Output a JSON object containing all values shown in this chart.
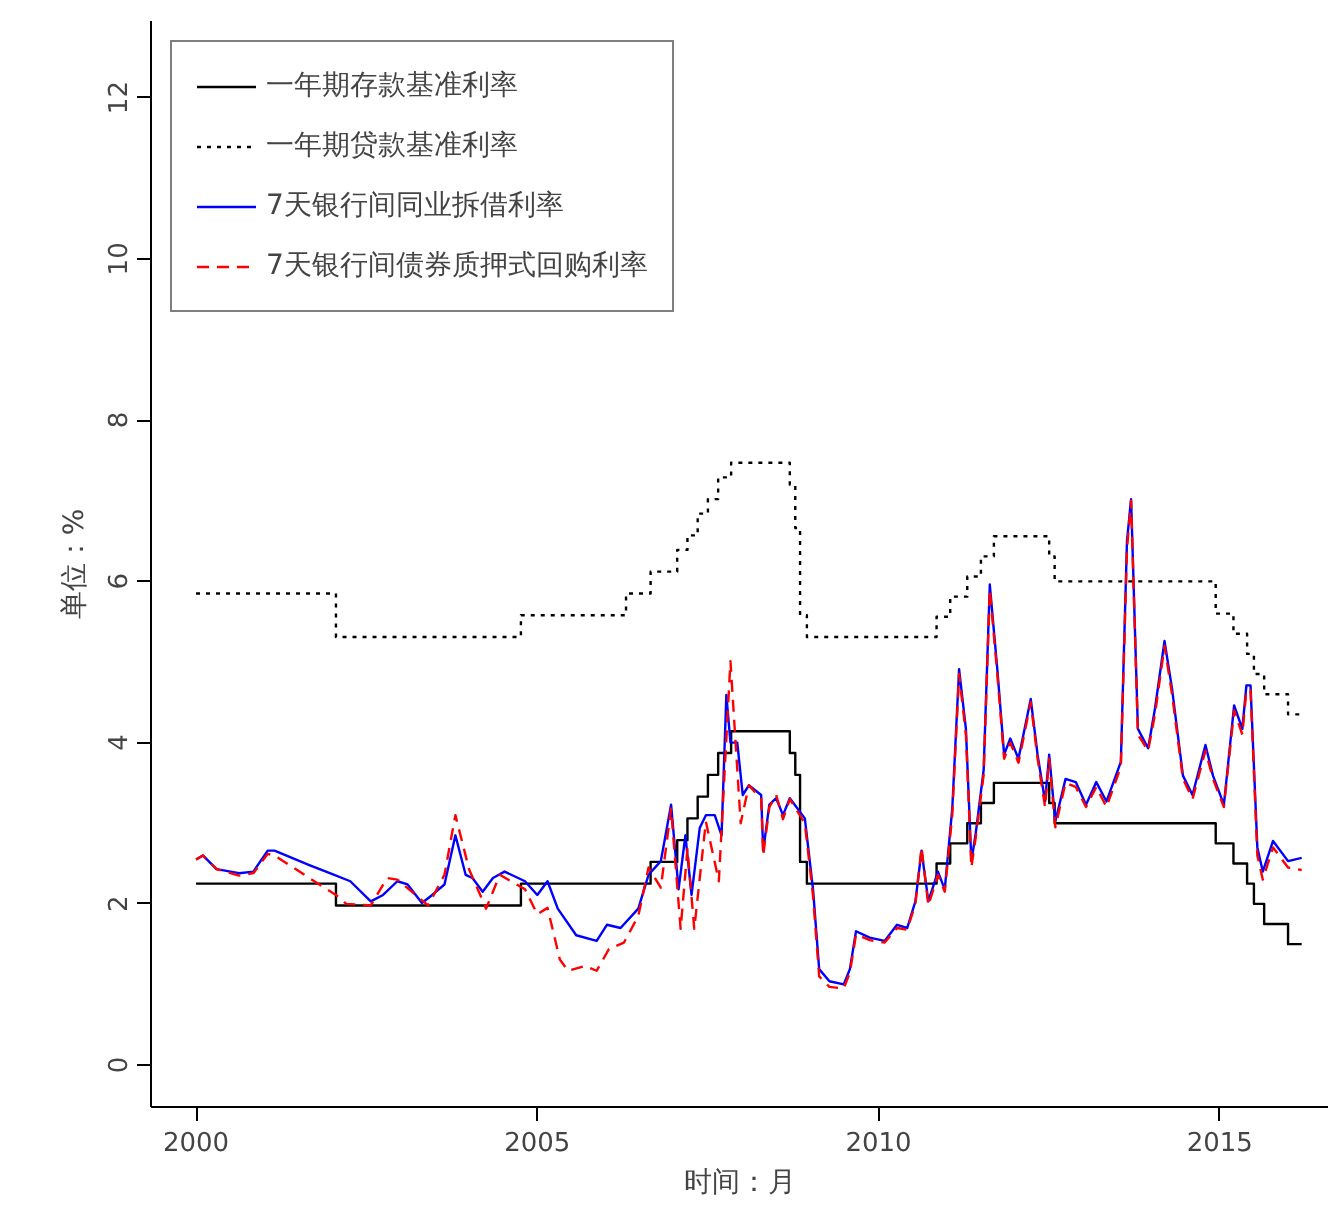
{
  "chart_data": {
    "type": "line",
    "xlabel": "时间：月",
    "ylabel": "单位：%",
    "legend": "top left",
    "xlim": [
      1999.34,
      2016.6
    ],
    "ylim": [
      -0.52,
      12.95
    ],
    "xticks": [
      2000,
      2005,
      2010,
      2015
    ],
    "yticks": [
      0,
      2,
      4,
      6,
      8,
      10,
      12
    ],
    "series": [
      {
        "name": "一年期存款基准利率",
        "type": "step",
        "color": "#000000",
        "line_style": "solid",
        "x": [
          2000,
          2002.05,
          2004.76,
          2006.66,
          2007.05,
          2007.2,
          2007.35,
          2007.5,
          2007.65,
          2007.84,
          2008.7,
          2008.78,
          2008.85,
          2008.95,
          2010.85,
          2011.05,
          2011.3,
          2011.5,
          2011.69,
          2012.5,
          2012.58,
          2014.94,
          2015.2,
          2015.4,
          2015.5,
          2015.65,
          2016.0,
          2016.2
        ],
        "values": [
          2.25,
          1.98,
          2.25,
          2.52,
          2.79,
          3.06,
          3.33,
          3.6,
          3.87,
          4.14,
          3.87,
          3.6,
          2.52,
          2.25,
          2.5,
          2.75,
          3.0,
          3.25,
          3.5,
          3.25,
          3.0,
          2.75,
          2.5,
          2.25,
          2.0,
          1.75,
          1.5,
          1.5
        ]
      },
      {
        "name": "一年期贷款基准利率",
        "type": "step",
        "color": "#000000",
        "line_style": "dotted",
        "x": [
          2000,
          2002.05,
          2004.76,
          2006.3,
          2006.66,
          2007.05,
          2007.2,
          2007.35,
          2007.5,
          2007.65,
          2007.84,
          2008.7,
          2008.78,
          2008.85,
          2008.95,
          2010.85,
          2011.05,
          2011.3,
          2011.5,
          2011.69,
          2012.5,
          2012.58,
          2014.94,
          2015.2,
          2015.4,
          2015.5,
          2015.65,
          2016.0,
          2016.2
        ],
        "values": [
          5.85,
          5.31,
          5.58,
          5.85,
          6.12,
          6.39,
          6.57,
          6.84,
          7.02,
          7.29,
          7.47,
          7.2,
          6.66,
          5.58,
          5.31,
          5.56,
          5.81,
          6.06,
          6.31,
          6.56,
          6.31,
          6.0,
          5.6,
          5.35,
          5.1,
          4.85,
          4.6,
          4.35,
          4.35
        ]
      },
      {
        "name": "7天银行间同业拆借利率",
        "type": "line",
        "color": "#0000ff",
        "line_style": "solid",
        "x": [
          2000.0,
          2000.1,
          2000.3,
          2000.63,
          2000.84,
          2001.05,
          2001.15,
          2001.66,
          2001.96,
          2002.26,
          2002.56,
          2002.74,
          2002.95,
          2003.1,
          2003.31,
          2003.46,
          2003.64,
          2003.8,
          2003.95,
          2004.05,
          2004.2,
          2004.35,
          2004.52,
          2004.72,
          2004.82,
          2005.0,
          2005.15,
          2005.3,
          2005.57,
          2005.87,
          2006.02,
          2006.22,
          2006.48,
          2006.63,
          2006.81,
          2006.96,
          2007.07,
          2007.17,
          2007.26,
          2007.38,
          2007.47,
          2007.6,
          2007.7,
          2007.77,
          2007.83,
          2007.93,
          2008.01,
          2008.1,
          2008.28,
          2008.31,
          2008.4,
          2008.5,
          2008.6,
          2008.7,
          2008.92,
          2009.04,
          2009.13,
          2009.28,
          2009.49,
          2009.58,
          2009.67,
          2009.87,
          2010.09,
          2010.27,
          2010.42,
          2010.54,
          2010.63,
          2010.73,
          2010.87,
          2010.97,
          2011.08,
          2011.18,
          2011.28,
          2011.36,
          2011.42,
          2011.54,
          2011.63,
          2011.74,
          2011.84,
          2011.93,
          2012.05,
          2012.23,
          2012.33,
          2012.44,
          2012.5,
          2012.59,
          2012.74,
          2012.89,
          2013.04,
          2013.19,
          2013.34,
          2013.55,
          2013.64,
          2013.7,
          2013.8,
          2013.95,
          2014.05,
          2014.19,
          2014.3,
          2014.46,
          2014.6,
          2014.79,
          2014.9,
          2015.06,
          2015.21,
          2015.33,
          2015.39,
          2015.45,
          2015.55,
          2015.63,
          2015.78,
          2016.0,
          2016.2
        ],
        "values": [
          2.55,
          2.6,
          2.43,
          2.38,
          2.4,
          2.66,
          2.66,
          2.48,
          2.38,
          2.28,
          2.03,
          2.11,
          2.28,
          2.24,
          2.01,
          2.11,
          2.24,
          2.85,
          2.36,
          2.32,
          2.15,
          2.32,
          2.4,
          2.32,
          2.28,
          2.11,
          2.28,
          1.94,
          1.61,
          1.54,
          1.74,
          1.7,
          1.94,
          2.36,
          2.53,
          3.23,
          2.18,
          2.85,
          2.11,
          2.94,
          3.1,
          3.1,
          2.85,
          4.59,
          4.0,
          4.0,
          3.35,
          3.47,
          3.35,
          2.66,
          3.23,
          3.31,
          3.1,
          3.31,
          3.06,
          2.18,
          1.19,
          1.04,
          1.0,
          1.19,
          1.66,
          1.58,
          1.54,
          1.74,
          1.7,
          2.03,
          2.66,
          2.03,
          2.4,
          2.18,
          3.18,
          4.91,
          4.17,
          2.53,
          2.85,
          3.66,
          5.96,
          4.91,
          3.85,
          4.05,
          3.8,
          4.54,
          3.85,
          3.27,
          3.85,
          3.02,
          3.55,
          3.51,
          3.23,
          3.51,
          3.27,
          3.76,
          6.5,
          7.02,
          4.17,
          3.93,
          4.42,
          5.26,
          4.67,
          3.59,
          3.35,
          3.97,
          3.59,
          3.23,
          4.46,
          4.17,
          4.71,
          4.71,
          2.7,
          2.4,
          2.78,
          2.53,
          2.57
        ]
      },
      {
        "name": "7天银行间债券质押式回购利率",
        "type": "line",
        "color": "#ff0000",
        "line_style": "dashed",
        "x": [
          2000.0,
          2000.1,
          2000.3,
          2000.63,
          2000.84,
          2001.05,
          2001.15,
          2001.66,
          2002.05,
          2002.2,
          2002.56,
          2002.8,
          2002.95,
          2003.4,
          2003.64,
          2003.8,
          2004.0,
          2004.25,
          2004.45,
          2004.82,
          2005.0,
          2005.15,
          2005.33,
          2005.45,
          2005.7,
          2005.87,
          2006.05,
          2006.27,
          2006.48,
          2006.63,
          2006.81,
          2006.96,
          2007.1,
          2007.2,
          2007.3,
          2007.47,
          2007.66,
          2007.83,
          2007.98,
          2008.1,
          2008.28,
          2008.31,
          2008.4,
          2008.5,
          2008.6,
          2008.7,
          2008.92,
          2009.04,
          2009.13,
          2009.28,
          2009.49,
          2009.58,
          2009.67,
          2009.87,
          2010.09,
          2010.27,
          2010.42,
          2010.54,
          2010.63,
          2010.73,
          2010.87,
          2010.97,
          2011.08,
          2011.18,
          2011.28,
          2011.36,
          2011.42,
          2011.54,
          2011.63,
          2011.74,
          2011.84,
          2011.93,
          2012.05,
          2012.23,
          2012.33,
          2012.44,
          2012.5,
          2012.59,
          2012.74,
          2012.89,
          2013.04,
          2013.19,
          2013.34,
          2013.55,
          2013.64,
          2013.7,
          2013.8,
          2013.95,
          2014.05,
          2014.19,
          2014.3,
          2014.46,
          2014.6,
          2014.79,
          2014.9,
          2015.06,
          2015.21,
          2015.33,
          2015.39,
          2015.45,
          2015.55,
          2015.63,
          2015.78,
          2016.0,
          2016.2
        ],
        "values": [
          2.55,
          2.6,
          2.43,
          2.35,
          2.38,
          2.62,
          2.6,
          2.32,
          2.11,
          2.0,
          1.98,
          2.32,
          2.3,
          1.98,
          2.36,
          3.1,
          2.43,
          1.94,
          2.36,
          2.18,
          1.87,
          1.95,
          1.31,
          1.17,
          1.23,
          1.17,
          1.44,
          1.52,
          1.85,
          2.45,
          2.2,
          3.18,
          1.69,
          2.68,
          1.69,
          3.02,
          2.28,
          5.01,
          3.0,
          3.47,
          3.3,
          2.6,
          3.2,
          3.35,
          3.05,
          3.3,
          3.0,
          2.1,
          1.1,
          0.97,
          0.95,
          1.15,
          1.62,
          1.55,
          1.52,
          1.7,
          1.68,
          2.0,
          2.7,
          1.98,
          2.36,
          2.15,
          3.1,
          4.85,
          4.1,
          2.45,
          2.8,
          3.6,
          5.9,
          4.85,
          3.8,
          4.0,
          3.75,
          4.5,
          3.8,
          3.2,
          3.8,
          2.95,
          3.5,
          3.45,
          3.2,
          3.45,
          3.2,
          3.7,
          6.4,
          7.0,
          4.1,
          3.9,
          4.35,
          5.2,
          4.6,
          3.55,
          3.3,
          3.9,
          3.55,
          3.2,
          4.4,
          4.1,
          4.65,
          4.65,
          2.6,
          2.3,
          2.7,
          2.45,
          2.42
        ]
      }
    ]
  }
}
